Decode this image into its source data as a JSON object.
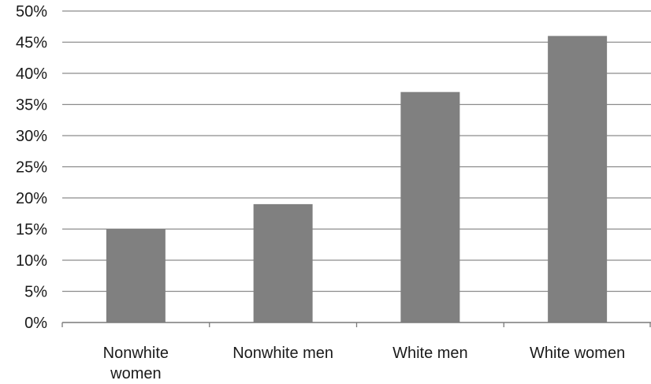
{
  "chart_data": {
    "type": "bar",
    "categories": [
      "Nonwhite women",
      "Nonwhite men",
      "White men",
      "White women"
    ],
    "category_label_lines": [
      [
        "Nonwhite",
        "women"
      ],
      [
        "Nonwhite men"
      ],
      [
        "White men"
      ],
      [
        "White women"
      ]
    ],
    "values": [
      15,
      19,
      37,
      46
    ],
    "value_format": "percent",
    "ylim": [
      0,
      50
    ],
    "yticks": [
      0,
      5,
      10,
      15,
      20,
      25,
      30,
      35,
      40,
      45,
      50
    ],
    "ytick_labels": [
      "0%",
      "5%",
      "10%",
      "15%",
      "20%",
      "25%",
      "30%",
      "35%",
      "40%",
      "45%",
      "50%"
    ],
    "title": "",
    "xlabel": "",
    "ylabel": "",
    "grid": true,
    "legend": "none",
    "colors": {
      "bar": "#808080",
      "gridline": "#8c8c8c",
      "axis": "#7a7a7a",
      "text": "#1a1a1a"
    }
  }
}
